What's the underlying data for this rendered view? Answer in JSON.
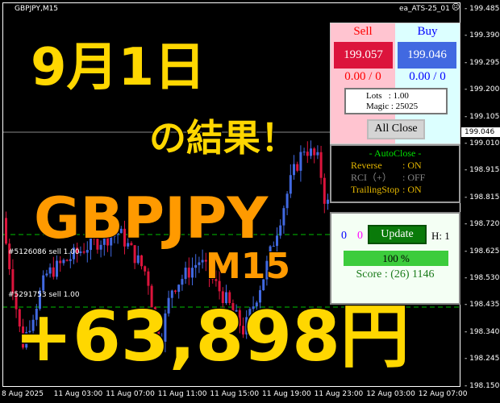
{
  "chart": {
    "symbol": "GBPJPY,M15",
    "ea_name": "ea_ATS-25_01",
    "ea_status_icon": "frown-face-icon",
    "current_price": "199.046",
    "price_labels": [
      "199.485",
      "199.390",
      "199.295",
      "199.200",
      "199.105",
      "199.010",
      "198.915",
      "198.815",
      "198.720",
      "198.625",
      "198.530",
      "198.435",
      "198.340",
      "198.245",
      "198.150"
    ],
    "time_labels": [
      "8 Aug 2025",
      "11 Aug 03:00",
      "11 Aug 07:00",
      "11 Aug 11:00",
      "11 Aug 15:00",
      "11 Aug 19:00",
      "11 Aug 23:00",
      "12 Aug 03:00",
      "12 Aug 07:00"
    ],
    "orders": [
      "#5126086 sell 1.00",
      "#5291753 sell 1.00"
    ],
    "colors": {
      "bull": "#4169e1",
      "bear": "#dc143c",
      "order_line": "#00c000"
    }
  },
  "overlay": {
    "date": "9月1日",
    "result": "の結果！",
    "pair": "GBPJPY",
    "timeframe": "M15",
    "profit": "+63,898円"
  },
  "panel": {
    "sell_label": "Sell",
    "buy_label": "Buy",
    "sell_price": "199.057",
    "buy_price": "199.046",
    "sell_pl": "0.00 / 0",
    "buy_pl": "0.00 / 0",
    "lots": "Lots   : 1.00",
    "magic": "Magic : 25025",
    "all_close": "All Close"
  },
  "autoclose": {
    "title": "- AutoClose -",
    "rows": [
      {
        "label": "Reverse",
        "value": ": ON"
      },
      {
        "label": "RCI（+）",
        "value": ": OFF"
      },
      {
        "label": "TrailingStop",
        "value": ": ON"
      }
    ]
  },
  "status": {
    "count_blue": "0",
    "count_magenta": "0",
    "update": "Update",
    "h": "H: 1",
    "progress": 100,
    "progress_label": "100 %",
    "score": "Score : (26) 1146"
  }
}
